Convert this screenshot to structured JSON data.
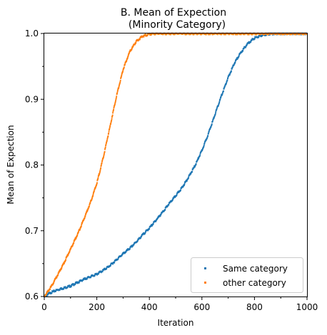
{
  "chart_data": {
    "type": "scatter",
    "title_line1": "B. Mean of Expection",
    "title_line2": "(Minority Category)",
    "xlabel": "Iteration",
    "ylabel": "Mean of Expection",
    "xlim": [
      0,
      1000
    ],
    "ylim": [
      0.6,
      1.0
    ],
    "x_ticks": [
      0,
      200,
      400,
      600,
      800,
      1000
    ],
    "x_minor_ticks": [
      100,
      300,
      500,
      700,
      900
    ],
    "y_ticks": [
      0.6,
      0.7,
      0.8,
      0.9,
      1.0
    ],
    "y_tick_labels": [
      "0.6",
      "0.7",
      "0.8",
      "0.9",
      "1.0"
    ],
    "y_minor_ticks": [
      0.65,
      0.75,
      0.85,
      0.95
    ],
    "grid": false,
    "legend_position": "lower-right",
    "series": [
      {
        "name": "Same category",
        "color": "#1f77b4",
        "x": [
          0,
          25,
          50,
          75,
          100,
          125,
          150,
          175,
          200,
          225,
          250,
          275,
          300,
          325,
          350,
          375,
          400,
          425,
          450,
          475,
          500,
          525,
          550,
          575,
          600,
          625,
          650,
          675,
          700,
          725,
          750,
          775,
          800,
          825,
          850,
          875,
          900,
          925,
          950,
          975,
          1000
        ],
        "y": [
          0.6,
          0.606,
          0.61,
          0.613,
          0.616,
          0.621,
          0.626,
          0.63,
          0.634,
          0.64,
          0.647,
          0.656,
          0.665,
          0.673,
          0.683,
          0.694,
          0.704,
          0.716,
          0.728,
          0.741,
          0.753,
          0.766,
          0.782,
          0.8,
          0.822,
          0.848,
          0.877,
          0.906,
          0.933,
          0.956,
          0.972,
          0.985,
          0.993,
          0.997,
          0.999,
          1.0,
          1.0,
          1.0,
          1.0,
          1.0,
          1.0
        ]
      },
      {
        "name": "other category",
        "color": "#ff7f0e",
        "x": [
          0,
          25,
          50,
          75,
          100,
          125,
          150,
          175,
          200,
          225,
          250,
          275,
          300,
          325,
          350,
          375,
          400,
          425,
          450,
          475,
          500,
          550,
          600,
          650,
          700,
          750,
          800,
          850,
          900,
          950,
          1000
        ],
        "y": [
          0.6,
          0.614,
          0.632,
          0.651,
          0.672,
          0.693,
          0.717,
          0.742,
          0.772,
          0.812,
          0.858,
          0.905,
          0.945,
          0.972,
          0.988,
          0.996,
          0.999,
          1.0,
          1.0,
          1.0,
          1.0,
          1.0,
          1.0,
          1.0,
          1.0,
          1.0,
          1.0,
          1.0,
          1.0,
          1.0,
          1.0
        ]
      }
    ]
  }
}
